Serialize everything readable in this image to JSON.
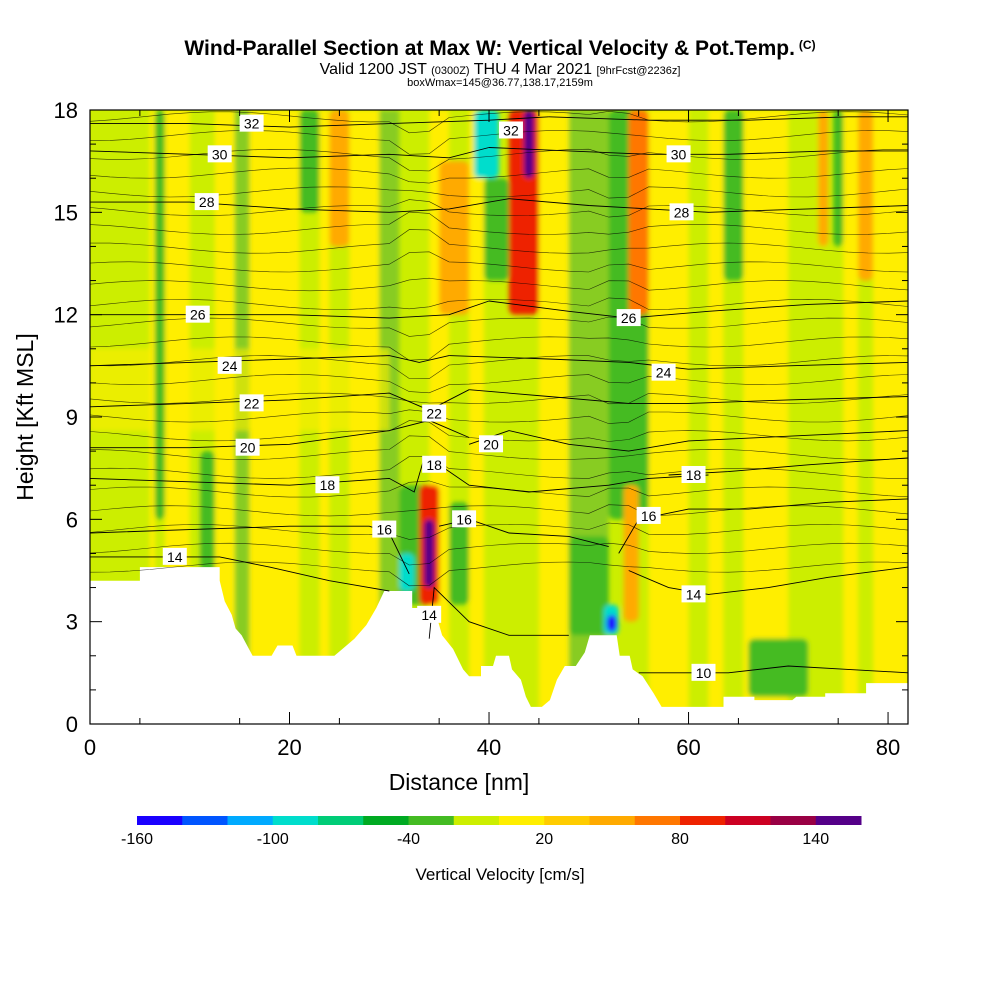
{
  "titles": {
    "main": "Wind-Parallel Section at Max W: Vertical Velocity & Pot.Temp.",
    "copyright": "(C)",
    "valid_prefix": "Valid 1200 JST",
    "valid_utc": "(0300Z)",
    "valid_date": "THU 4 Mar 2021",
    "forecast": "[9hrFcst@2236z]",
    "box_info": "boxWmax=145@36.77,138.17,2159m"
  },
  "colors": {
    "pale_yellow_green": "#ccee00",
    "yellow": "#ffee00",
    "light_green": "#88cc22",
    "green": "#22aa22"
  },
  "chart_data": {
    "type": "heatmap",
    "xlabel": "Distance [nm]",
    "ylabel": "Height [Kft MSL]",
    "xlim": [
      0,
      82
    ],
    "ylim": [
      0,
      18
    ],
    "x_ticks": [
      0,
      20,
      40,
      60,
      80
    ],
    "y_ticks": [
      0,
      3,
      6,
      9,
      12,
      15,
      18
    ],
    "colorbar": {
      "label": "Vertical Velocity [cm/s]",
      "tick_labels": [
        "-160",
        "-100",
        "-40",
        "20",
        "80",
        "140"
      ],
      "tick_values": [
        -160,
        -100,
        -40,
        20,
        80,
        140
      ],
      "bins": [
        {
          "color": "#1a00ff"
        },
        {
          "color": "#0055ff"
        },
        {
          "color": "#00aaff"
        },
        {
          "color": "#00ddcc"
        },
        {
          "color": "#00cc77"
        },
        {
          "color": "#00aa22"
        },
        {
          "color": "#44bb22"
        },
        {
          "color": "#ccee00"
        },
        {
          "color": "#ffee00"
        },
        {
          "color": "#ffcc00"
        },
        {
          "color": "#ffaa00"
        },
        {
          "color": "#ff7700"
        },
        {
          "color": "#ee2200"
        },
        {
          "color": "#cc0022"
        },
        {
          "color": "#990044"
        },
        {
          "color": "#550088"
        }
      ]
    },
    "terrain": [
      [
        0,
        4.2
      ],
      [
        5,
        4.2
      ],
      [
        5,
        4.6
      ],
      [
        13,
        4.6
      ],
      [
        13,
        4.2
      ],
      [
        13.5,
        3.6
      ],
      [
        14.2,
        3.2
      ],
      [
        14.6,
        2.8
      ],
      [
        15.2,
        2.6
      ],
      [
        16.3,
        2.0
      ],
      [
        18.2,
        2.0
      ],
      [
        18.8,
        2.3
      ],
      [
        20.3,
        2.3
      ],
      [
        20.7,
        2.0
      ],
      [
        24.5,
        2.0
      ],
      [
        25.3,
        2.2
      ],
      [
        26.5,
        2.5
      ],
      [
        27.7,
        2.9
      ],
      [
        28.7,
        3.4
      ],
      [
        29.5,
        3.9
      ],
      [
        32.3,
        3.9
      ],
      [
        32.3,
        3.4
      ],
      [
        33,
        3.4
      ],
      [
        34.5,
        3.4
      ],
      [
        35.3,
        2.6
      ],
      [
        36.4,
        2.2
      ],
      [
        37.4,
        1.6
      ],
      [
        38,
        1.4
      ],
      [
        39.2,
        1.4
      ],
      [
        39.2,
        1.7
      ],
      [
        40.4,
        1.7
      ],
      [
        40.7,
        2.0
      ],
      [
        42,
        2.0
      ],
      [
        42.3,
        1.6
      ],
      [
        43.2,
        1.3
      ],
      [
        43.7,
        0.8
      ],
      [
        44.2,
        0.5
      ],
      [
        45.3,
        0.5
      ],
      [
        46.1,
        0.7
      ],
      [
        46.8,
        1.3
      ],
      [
        47.6,
        1.7
      ],
      [
        48.7,
        1.7
      ],
      [
        49.6,
        2.1
      ],
      [
        50.1,
        2.6
      ],
      [
        52.8,
        2.6
      ],
      [
        53.1,
        2.0
      ],
      [
        54.1,
        2.0
      ],
      [
        54.4,
        1.6
      ],
      [
        55.4,
        1.4
      ],
      [
        56.5,
        0.9
      ],
      [
        57.3,
        0.5
      ],
      [
        63.5,
        0.5
      ],
      [
        63.5,
        0.8
      ],
      [
        66.6,
        0.8
      ],
      [
        66.6,
        0.7
      ],
      [
        70.4,
        0.7
      ],
      [
        70.8,
        0.8
      ],
      [
        73.7,
        0.8
      ],
      [
        73.7,
        0.9
      ],
      [
        77.8,
        0.9
      ],
      [
        77.8,
        1.2
      ],
      [
        82,
        1.2
      ]
    ],
    "w_regions": [
      {
        "value": -40,
        "x_range": [
          6.5,
          7.5
        ],
        "z_range": [
          6.0,
          18.0
        ]
      },
      {
        "value": -40,
        "x_range": [
          11.0,
          12.5
        ],
        "z_range": [
          3.5,
          8.0
        ]
      },
      {
        "value": -40,
        "x_range": [
          21.0,
          23.0
        ],
        "z_range": [
          15.0,
          18.0
        ]
      },
      {
        "value": -40,
        "x_range": [
          31.0,
          34.0
        ],
        "z_range": [
          3.5,
          7.0
        ]
      },
      {
        "value": -40,
        "x_range": [
          36.0,
          38.0
        ],
        "z_range": [
          3.5,
          6.5
        ]
      },
      {
        "value": -40,
        "x_range": [
          39.5,
          42.0
        ],
        "z_range": [
          13.0,
          16.0
        ]
      },
      {
        "value": -40,
        "x_range": [
          48.0,
          52.0
        ],
        "z_range": [
          2.6,
          5.5
        ]
      },
      {
        "value": -40,
        "x_range": [
          52.0,
          56.0
        ],
        "z_range": [
          6.0,
          18.0
        ]
      },
      {
        "value": -40,
        "x_range": [
          63.5,
          65.5
        ],
        "z_range": [
          13.0,
          18.0
        ]
      },
      {
        "value": -40,
        "x_range": [
          74.5,
          75.5
        ],
        "z_range": [
          14.0,
          18.0
        ]
      },
      {
        "value": -40,
        "x_range": [
          66.0,
          72.0
        ],
        "z_range": [
          0.8,
          2.5
        ]
      },
      {
        "value": -100,
        "x_range": [
          31.0,
          32.5
        ],
        "z_range": [
          3.9,
          5.0
        ]
      },
      {
        "value": -100,
        "x_range": [
          51.5,
          53.0
        ],
        "z_range": [
          2.6,
          3.5
        ]
      },
      {
        "value": -160,
        "x_range": [
          51.8,
          52.8
        ],
        "z_range": [
          2.7,
          3.2
        ]
      },
      {
        "value": -100,
        "x_range": [
          38.5,
          41.0
        ],
        "z_range": [
          16.0,
          18.0
        ]
      },
      {
        "value": 40,
        "x_range": [
          35.0,
          38.0
        ],
        "z_range": [
          12.0,
          16.5
        ]
      },
      {
        "value": 80,
        "x_range": [
          33.0,
          35.0
        ],
        "z_range": [
          3.5,
          7.0
        ]
      },
      {
        "value": 140,
        "x_range": [
          33.5,
          34.5
        ],
        "z_range": [
          4.0,
          6.0
        ]
      },
      {
        "value": 80,
        "x_range": [
          42.0,
          45.0
        ],
        "z_range": [
          12.0,
          18.0
        ]
      },
      {
        "value": 140,
        "x_range": [
          43.5,
          44.5
        ],
        "z_range": [
          16.0,
          18.0
        ]
      },
      {
        "value": 40,
        "x_range": [
          53.5,
          55.0
        ],
        "z_range": [
          3.0,
          7.0
        ]
      },
      {
        "value": 60,
        "x_range": [
          54.0,
          56.0
        ],
        "z_range": [
          12.0,
          18.0
        ]
      },
      {
        "value": 40,
        "x_range": [
          24.0,
          26.0
        ],
        "z_range": [
          14.0,
          18.0
        ]
      },
      {
        "value": 40,
        "x_range": [
          73.0,
          74.0
        ],
        "z_range": [
          14.0,
          18.0
        ]
      },
      {
        "value": 40,
        "x_range": [
          77.0,
          78.5
        ],
        "z_range": [
          13.0,
          18.0
        ]
      }
    ],
    "theta_contours": [
      {
        "label": "10",
        "label_at": [
          61.5,
          1.5
        ],
        "points": [
          [
            55,
            1.5
          ],
          [
            60,
            1.5
          ],
          [
            64,
            1.5
          ],
          [
            70,
            1.7
          ],
          [
            76,
            1.6
          ],
          [
            82,
            1.5
          ]
        ]
      },
      {
        "label": "14",
        "label_at": [
          8.5,
          4.9
        ],
        "points": [
          [
            0,
            4.9
          ],
          [
            13,
            4.9
          ],
          [
            18,
            4.6
          ],
          [
            24,
            4.2
          ],
          [
            28,
            4.0
          ],
          [
            30,
            3.9
          ]
        ]
      },
      {
        "label": "14",
        "label_at": [
          34,
          3.2
        ],
        "points": [
          [
            34,
            2.5
          ],
          [
            34.5,
            4.0
          ],
          [
            38,
            3.0
          ],
          [
            42,
            2.6
          ],
          [
            48,
            2.6
          ]
        ]
      },
      {
        "label": "14",
        "label_at": [
          60.5,
          3.8
        ],
        "points": [
          [
            54,
            4.5
          ],
          [
            58,
            4.0
          ],
          [
            62,
            3.8
          ],
          [
            68,
            4.0
          ],
          [
            74,
            4.3
          ],
          [
            82,
            4.6
          ]
        ]
      },
      {
        "label": "16",
        "label_at": [
          29.5,
          5.7
        ],
        "points": [
          [
            0,
            5.6
          ],
          [
            10,
            5.7
          ],
          [
            20,
            5.8
          ],
          [
            28,
            5.8
          ],
          [
            30,
            5.6
          ],
          [
            32,
            4.4
          ]
        ]
      },
      {
        "label": "16",
        "label_at": [
          37.5,
          6.0
        ],
        "points": [
          [
            35,
            5.8
          ],
          [
            38,
            6.0
          ],
          [
            42,
            5.6
          ],
          [
            48,
            5.5
          ],
          [
            52,
            5.2
          ]
        ]
      },
      {
        "label": "16",
        "label_at": [
          56,
          6.1
        ],
        "points": [
          [
            53,
            5.0
          ],
          [
            55,
            6.0
          ],
          [
            60,
            6.3
          ],
          [
            66,
            6.3
          ],
          [
            74,
            6.5
          ],
          [
            82,
            6.6
          ]
        ]
      },
      {
        "label": "18",
        "label_at": [
          23.8,
          7.0
        ],
        "points": [
          [
            0,
            7.2
          ],
          [
            10,
            7.1
          ],
          [
            20,
            7.0
          ],
          [
            30,
            7.2
          ],
          [
            32.5,
            6.8
          ],
          [
            33.5,
            7.8
          ]
        ]
      },
      {
        "label": "18",
        "label_at": [
          34.5,
          7.6
        ],
        "points": [
          [
            34,
            7.8
          ],
          [
            38,
            7.0
          ],
          [
            44,
            6.8
          ],
          [
            52,
            7.0
          ],
          [
            56,
            7.2
          ],
          [
            62,
            7.3
          ]
        ]
      },
      {
        "label": "18",
        "label_at": [
          60.5,
          7.3
        ],
        "points": [
          [
            58,
            7.3
          ],
          [
            64,
            7.4
          ],
          [
            72,
            7.6
          ],
          [
            82,
            7.8
          ]
        ]
      },
      {
        "label": "20",
        "label_at": [
          15.8,
          8.1
        ],
        "points": [
          [
            0,
            8.1
          ],
          [
            10,
            8.1
          ],
          [
            20,
            8.2
          ],
          [
            30,
            8.6
          ],
          [
            34,
            8.9
          ],
          [
            38,
            8.4
          ]
        ]
      },
      {
        "label": "20",
        "label_at": [
          40.2,
          8.2
        ],
        "points": [
          [
            38,
            8.2
          ],
          [
            42,
            8.6
          ],
          [
            48,
            8.2
          ],
          [
            54,
            8.0
          ],
          [
            60,
            8.3
          ],
          [
            82,
            8.6
          ]
        ]
      },
      {
        "label": "22",
        "label_at": [
          16.2,
          9.4
        ],
        "points": [
          [
            0,
            9.3
          ],
          [
            10,
            9.4
          ],
          [
            20,
            9.5
          ],
          [
            30,
            9.7
          ],
          [
            34,
            9.2
          ],
          [
            38,
            9.8
          ]
        ]
      },
      {
        "label": "22",
        "label_at": [
          34.5,
          9.1
        ],
        "points": [
          [
            38,
            9.8
          ],
          [
            46,
            9.6
          ],
          [
            54,
            9.4
          ],
          [
            60,
            9.4
          ],
          [
            70,
            9.5
          ],
          [
            82,
            9.6
          ]
        ]
      },
      {
        "label": "24",
        "label_at": [
          14,
          10.5
        ],
        "points": [
          [
            0,
            10.5
          ],
          [
            10,
            10.6
          ],
          [
            20,
            10.7
          ],
          [
            30,
            10.8
          ],
          [
            33,
            10.6
          ],
          [
            36,
            10.8
          ]
        ]
      },
      {
        "label": "24",
        "label_at": [
          57.5,
          10.3
        ],
        "points": [
          [
            36,
            10.8
          ],
          [
            46,
            10.7
          ],
          [
            54,
            10.6
          ],
          [
            60,
            10.4
          ],
          [
            70,
            10.5
          ],
          [
            82,
            10.6
          ]
        ]
      },
      {
        "label": "26",
        "label_at": [
          10.8,
          12.0
        ],
        "points": [
          [
            0,
            12.0
          ],
          [
            10,
            12.0
          ],
          [
            20,
            12.0
          ],
          [
            30,
            11.9
          ],
          [
            36,
            12.0
          ],
          [
            40,
            12.4
          ]
        ]
      },
      {
        "label": "26",
        "label_at": [
          54,
          11.9
        ],
        "points": [
          [
            40,
            12.4
          ],
          [
            48,
            12.1
          ],
          [
            54,
            11.9
          ],
          [
            62,
            12.1
          ],
          [
            72,
            12.3
          ],
          [
            82,
            12.4
          ]
        ]
      },
      {
        "label": "28",
        "label_at": [
          11.7,
          15.3
        ],
        "points": [
          [
            0,
            15.3
          ],
          [
            10,
            15.3
          ],
          [
            20,
            15.1
          ],
          [
            30,
            15.0
          ],
          [
            36,
            15.1
          ],
          [
            42,
            15.4
          ]
        ]
      },
      {
        "label": "28",
        "label_at": [
          59.3,
          15.0
        ],
        "points": [
          [
            42,
            15.4
          ],
          [
            50,
            15.2
          ],
          [
            56,
            15.1
          ],
          [
            62,
            15.0
          ],
          [
            72,
            15.1
          ],
          [
            82,
            15.2
          ]
        ]
      },
      {
        "label": "30",
        "label_at": [
          13,
          16.7
        ],
        "points": [
          [
            0,
            16.8
          ],
          [
            10,
            16.7
          ],
          [
            20,
            16.6
          ],
          [
            30,
            16.7
          ],
          [
            36,
            16.6
          ],
          [
            40,
            16.9
          ]
        ]
      },
      {
        "label": "30",
        "label_at": [
          59,
          16.7
        ],
        "points": [
          [
            40,
            16.9
          ],
          [
            48,
            16.8
          ],
          [
            56,
            16.7
          ],
          [
            64,
            16.7
          ],
          [
            74,
            16.8
          ],
          [
            82,
            16.8
          ]
        ]
      },
      {
        "label": "32",
        "label_at": [
          16.2,
          17.6
        ],
        "points": [
          [
            0,
            17.6
          ],
          [
            10,
            17.6
          ],
          [
            20,
            17.5
          ],
          [
            30,
            17.6
          ],
          [
            40,
            17.7
          ],
          [
            46,
            17.8
          ]
        ]
      },
      {
        "label": "32",
        "label_at": [
          42.2,
          17.4
        ],
        "points": [
          [
            46,
            17.8
          ],
          [
            56,
            17.7
          ],
          [
            66,
            17.7
          ],
          [
            76,
            17.8
          ],
          [
            82,
            17.8
          ]
        ]
      }
    ]
  }
}
